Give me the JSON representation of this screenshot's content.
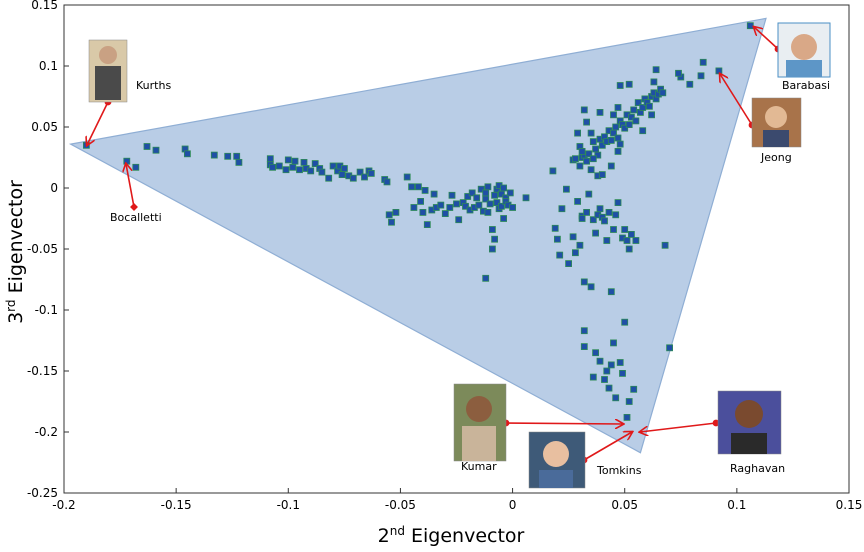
{
  "chart_data": {
    "type": "scatter",
    "xlabel": {
      "base": "2",
      "sup": "nd",
      "text": " Eigenvector"
    },
    "ylabel": {
      "base": "3",
      "sup": "rd",
      "text": " Eigenvector"
    },
    "xlim": [
      -0.2,
      0.15
    ],
    "ylim": [
      -0.25,
      0.15
    ],
    "xticks": [
      {
        "value": -0.2,
        "label": "-0.2"
      },
      {
        "value": -0.15,
        "label": "-0.15"
      },
      {
        "value": -0.1,
        "label": "-0.1"
      },
      {
        "value": -0.05,
        "label": "-0.05"
      },
      {
        "value": 0,
        "label": "0"
      },
      {
        "value": 0.05,
        "label": "0.05"
      },
      {
        "value": 0.1,
        "label": "0.1"
      },
      {
        "value": 0.15,
        "label": "0.15"
      }
    ],
    "yticks": [
      {
        "value": 0.15,
        "label": "0.15"
      },
      {
        "value": 0.1,
        "label": "0.1"
      },
      {
        "value": 0.05,
        "label": "0.05"
      },
      {
        "value": 0,
        "label": "0"
      },
      {
        "value": -0.05,
        "label": "-0.05"
      },
      {
        "value": -0.1,
        "label": "-0.1"
      },
      {
        "value": -0.15,
        "label": "-0.15"
      },
      {
        "value": -0.2,
        "label": "-0.2"
      },
      {
        "value": -0.25,
        "label": "-0.25"
      }
    ],
    "grid": false,
    "triangle": [
      [
        -0.197,
        0.036
      ],
      [
        0.113,
        0.139
      ],
      [
        0.057,
        -0.217
      ]
    ],
    "colors": {
      "fill": "#b9cde6",
      "edge": "#8faed4",
      "marker": "#1f4fa6",
      "marker_edge": "#2e8b57",
      "arrow": "#e0191a"
    },
    "points": [
      [
        -0.19,
        0.035
      ],
      [
        -0.172,
        0.022
      ],
      [
        -0.163,
        0.034
      ],
      [
        -0.159,
        0.031
      ],
      [
        -0.146,
        0.032
      ],
      [
        -0.145,
        0.028
      ],
      [
        -0.133,
        0.027
      ],
      [
        -0.127,
        0.026
      ],
      [
        -0.123,
        0.026
      ],
      [
        -0.122,
        0.021
      ],
      [
        -0.108,
        0.024
      ],
      [
        -0.108,
        0.019
      ],
      [
        -0.107,
        0.017
      ],
      [
        -0.104,
        0.018
      ],
      [
        -0.101,
        0.015
      ],
      [
        -0.1,
        0.023
      ],
      [
        -0.098,
        0.017
      ],
      [
        -0.097,
        0.022
      ],
      [
        -0.095,
        0.015
      ],
      [
        -0.093,
        0.021
      ],
      [
        -0.092,
        0.016
      ],
      [
        -0.09,
        0.014
      ],
      [
        -0.088,
        0.02
      ],
      [
        -0.086,
        0.016
      ],
      [
        -0.085,
        0.013
      ],
      [
        -0.082,
        0.008
      ],
      [
        -0.08,
        0.018
      ],
      [
        -0.078,
        0.014
      ],
      [
        -0.077,
        0.018
      ],
      [
        -0.076,
        0.011
      ],
      [
        -0.075,
        0.016
      ],
      [
        -0.073,
        0.01
      ],
      [
        -0.071,
        0.008
      ],
      [
        -0.068,
        0.013
      ],
      [
        -0.066,
        0.009
      ],
      [
        -0.064,
        0.014
      ],
      [
        -0.063,
        0.012
      ],
      [
        -0.057,
        0.007
      ],
      [
        -0.056,
        0.005
      ],
      [
        -0.055,
        -0.022
      ],
      [
        -0.054,
        -0.028
      ],
      [
        -0.052,
        -0.02
      ],
      [
        -0.047,
        0.009
      ],
      [
        -0.045,
        0.001
      ],
      [
        -0.044,
        -0.016
      ],
      [
        -0.042,
        0.001
      ],
      [
        -0.041,
        -0.011
      ],
      [
        -0.04,
        -0.02
      ],
      [
        -0.039,
        -0.002
      ],
      [
        -0.038,
        -0.03
      ],
      [
        -0.036,
        -0.018
      ],
      [
        -0.035,
        -0.005
      ],
      [
        -0.034,
        -0.016
      ],
      [
        -0.032,
        -0.014
      ],
      [
        -0.03,
        -0.021
      ],
      [
        -0.028,
        -0.016
      ],
      [
        -0.027,
        -0.006
      ],
      [
        -0.025,
        -0.013
      ],
      [
        -0.024,
        -0.026
      ],
      [
        -0.022,
        -0.012
      ],
      [
        -0.021,
        -0.015
      ],
      [
        -0.02,
        -0.007
      ],
      [
        -0.019,
        -0.018
      ],
      [
        -0.018,
        -0.004
      ],
      [
        -0.017,
        -0.016
      ],
      [
        -0.016,
        -0.008
      ],
      [
        -0.015,
        -0.014
      ],
      [
        -0.014,
        -0.001
      ],
      [
        -0.013,
        -0.019
      ],
      [
        -0.012,
        -0.004
      ],
      [
        -0.012,
        -0.009
      ],
      [
        -0.011,
        -0.02
      ],
      [
        -0.011,
        0.001
      ],
      [
        -0.01,
        -0.013
      ],
      [
        -0.009,
        -0.034
      ],
      [
        -0.009,
        -0.05
      ],
      [
        -0.008,
        -0.006
      ],
      [
        -0.008,
        -0.042
      ],
      [
        -0.007,
        -0.012
      ],
      [
        -0.007,
        -0.001
      ],
      [
        -0.006,
        -0.017
      ],
      [
        -0.006,
        0.002
      ],
      [
        -0.005,
        -0.005
      ],
      [
        -0.005,
        -0.015
      ],
      [
        -0.004,
        -0.025
      ],
      [
        -0.004,
        0.0
      ],
      [
        -0.003,
        -0.008
      ],
      [
        -0.003,
        -0.011
      ],
      [
        -0.002,
        -0.014
      ],
      [
        -0.001,
        -0.004
      ],
      [
        0.0,
        -0.016
      ],
      [
        -0.012,
        -0.074
      ],
      [
        0.006,
        -0.008
      ],
      [
        0.019,
        -0.033
      ],
      [
        0.02,
        -0.042
      ],
      [
        0.021,
        -0.055
      ],
      [
        0.022,
        -0.017
      ],
      [
        0.024,
        -0.001
      ],
      [
        0.025,
        -0.062
      ],
      [
        0.027,
        -0.04
      ],
      [
        0.028,
        -0.053
      ],
      [
        0.029,
        -0.011
      ],
      [
        0.03,
        -0.047
      ],
      [
        0.031,
        -0.023
      ],
      [
        0.031,
        -0.025
      ],
      [
        0.032,
        -0.077
      ],
      [
        0.033,
        -0.02
      ],
      [
        0.034,
        -0.005
      ],
      [
        0.035,
        -0.081
      ],
      [
        0.036,
        -0.026
      ],
      [
        0.037,
        -0.037
      ],
      [
        0.038,
        -0.022
      ],
      [
        0.039,
        -0.017
      ],
      [
        0.04,
        -0.024
      ],
      [
        0.041,
        -0.027
      ],
      [
        0.042,
        -0.043
      ],
      [
        0.043,
        -0.02
      ],
      [
        0.044,
        -0.085
      ],
      [
        0.045,
        -0.034
      ],
      [
        0.046,
        -0.022
      ],
      [
        0.047,
        -0.012
      ],
      [
        0.049,
        -0.041
      ],
      [
        0.05,
        -0.034
      ],
      [
        0.051,
        -0.043
      ],
      [
        0.053,
        -0.038
      ],
      [
        0.055,
        -0.043
      ],
      [
        0.032,
        -0.117
      ],
      [
        0.032,
        -0.13
      ],
      [
        0.037,
        -0.135
      ],
      [
        0.039,
        -0.142
      ],
      [
        0.041,
        -0.157
      ],
      [
        0.042,
        -0.15
      ],
      [
        0.043,
        -0.164
      ],
      [
        0.044,
        -0.145
      ],
      [
        0.045,
        -0.127
      ],
      [
        0.046,
        -0.172
      ],
      [
        0.048,
        -0.143
      ],
      [
        0.049,
        -0.152
      ],
      [
        0.052,
        -0.175
      ],
      [
        0.054,
        -0.165
      ],
      [
        0.051,
        -0.188
      ],
      [
        0.036,
        -0.155
      ],
      [
        0.05,
        -0.11
      ],
      [
        0.052,
        -0.05
      ],
      [
        0.068,
        -0.047
      ],
      [
        0.07,
        -0.131
      ],
      [
        0.027,
        0.023
      ],
      [
        0.028,
        0.024
      ],
      [
        0.03,
        0.034
      ],
      [
        0.031,
        0.025
      ],
      [
        0.032,
        0.027
      ],
      [
        0.033,
        0.022
      ],
      [
        0.034,
        0.028
      ],
      [
        0.035,
        0.045
      ],
      [
        0.036,
        0.038
      ],
      [
        0.037,
        0.032
      ],
      [
        0.038,
        0.027
      ],
      [
        0.039,
        0.04
      ],
      [
        0.04,
        0.035
      ],
      [
        0.041,
        0.042
      ],
      [
        0.042,
        0.038
      ],
      [
        0.043,
        0.047
      ],
      [
        0.044,
        0.039
      ],
      [
        0.045,
        0.045
      ],
      [
        0.046,
        0.05
      ],
      [
        0.047,
        0.041
      ],
      [
        0.048,
        0.055
      ],
      [
        0.049,
        0.052
      ],
      [
        0.05,
        0.049
      ],
      [
        0.051,
        0.06
      ],
      [
        0.052,
        0.052
      ],
      [
        0.053,
        0.058
      ],
      [
        0.054,
        0.064
      ],
      [
        0.055,
        0.055
      ],
      [
        0.056,
        0.07
      ],
      [
        0.057,
        0.062
      ],
      [
        0.058,
        0.066
      ],
      [
        0.059,
        0.073
      ],
      [
        0.06,
        0.07
      ],
      [
        0.061,
        0.067
      ],
      [
        0.062,
        0.075
      ],
      [
        0.063,
        0.078
      ],
      [
        0.064,
        0.073
      ],
      [
        0.065,
        0.077
      ],
      [
        0.066,
        0.081
      ],
      [
        0.067,
        0.078
      ],
      [
        0.063,
        0.087
      ],
      [
        0.064,
        0.097
      ],
      [
        0.075,
        0.091
      ],
      [
        0.074,
        0.094
      ],
      [
        0.084,
        0.092
      ],
      [
        0.085,
        0.103
      ],
      [
        0.092,
        0.096
      ],
      [
        0.079,
        0.085
      ],
      [
        0.029,
        0.045
      ],
      [
        0.032,
        0.064
      ],
      [
        0.039,
        0.062
      ],
      [
        0.047,
        0.066
      ],
      [
        0.048,
        0.084
      ],
      [
        0.052,
        0.085
      ],
      [
        0.058,
        0.047
      ],
      [
        0.062,
        0.06
      ],
      [
        0.033,
        0.054
      ],
      [
        0.031,
        0.03
      ],
      [
        0.044,
        0.018
      ],
      [
        0.045,
        0.06
      ],
      [
        0.048,
        0.036
      ],
      [
        0.038,
        0.01
      ],
      [
        0.04,
        0.011
      ],
      [
        0.035,
        0.015
      ],
      [
        0.018,
        0.014
      ],
      [
        0.047,
        0.03
      ],
      [
        0.03,
        0.018
      ],
      [
        0.036,
        0.024
      ],
      [
        0.106,
        0.133
      ],
      [
        -0.168,
        0.017
      ]
    ],
    "annotations": [
      {
        "name": "Kurths",
        "label": "Kurths"
      },
      {
        "name": "Bocalletti",
        "label": "Bocalletti"
      },
      {
        "name": "Barabasi",
        "label": "Barabasi"
      },
      {
        "name": "Jeong",
        "label": "Jeong"
      },
      {
        "name": "Kumar",
        "label": "Kumar"
      },
      {
        "name": "Tomkins",
        "label": "Tomkins"
      },
      {
        "name": "Raghavan",
        "label": "Raghavan"
      }
    ]
  }
}
